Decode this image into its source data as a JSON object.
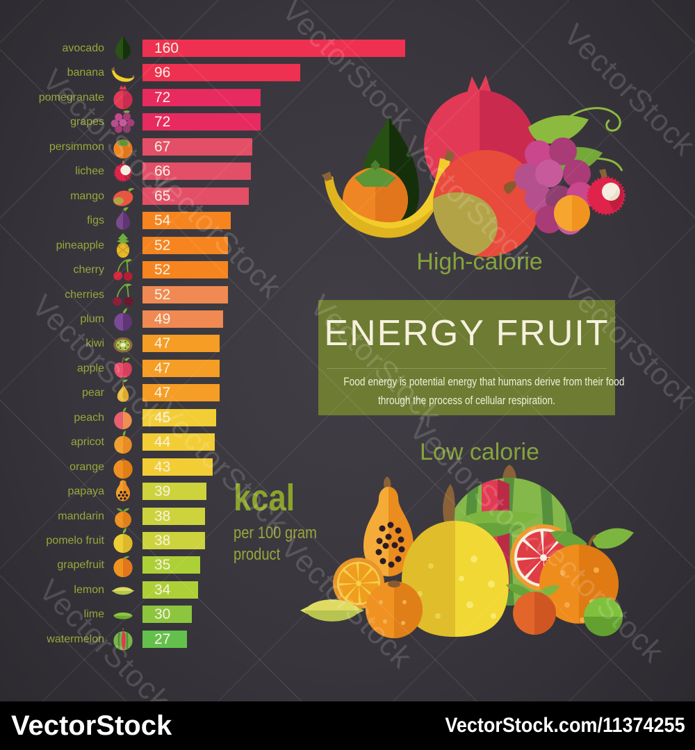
{
  "watermark": {
    "label": "VectorStock"
  },
  "footer": {
    "brand": "VectorStock",
    "url": "VectorStock.com/11374255"
  },
  "title_box": {
    "title": "ENERGY FRUIT",
    "description_line1": "Food energy is potential energy that humans derive from their food",
    "description_line2": "through the process of cellular respiration."
  },
  "captions": {
    "high": "High-calorie",
    "low": "Low calorie"
  },
  "unit_note": {
    "unit": "kcal",
    "line1": "per 100 gram",
    "line2": "product"
  },
  "chart_data": {
    "type": "bar",
    "orientation": "horizontal",
    "title": "Energy fruit",
    "xlabel": "kcal per 100 gram product",
    "xlim": [
      0,
      170
    ],
    "value_labels_inside_bars": true,
    "categories": [
      "avocado",
      "banana",
      "pomegranate",
      "grapes",
      "persimmon",
      "lichee",
      "mango",
      "figs",
      "pineapple",
      "cherry",
      "cherries",
      "plum",
      "kiwi",
      "apple",
      "pear",
      "peach",
      "apricot",
      "orange",
      "papaya",
      "mandarin",
      "pomelo fruit",
      "grapefruit",
      "lemon",
      "lime",
      "watermelon"
    ],
    "values": [
      160,
      96,
      72,
      72,
      67,
      66,
      65,
      54,
      52,
      52,
      52,
      49,
      47,
      47,
      47,
      45,
      44,
      43,
      39,
      38,
      38,
      35,
      34,
      30,
      27
    ],
    "bar_colors": [
      "#ee3150",
      "#ee3150",
      "#e72a60",
      "#e72a60",
      "#e24f66",
      "#e24f66",
      "#e24f66",
      "#f6851f",
      "#f6851f",
      "#f6851f",
      "#f08a52",
      "#f08a52",
      "#f59d24",
      "#f59d24",
      "#f59d24",
      "#f2cd35",
      "#f2cd35",
      "#f2cd35",
      "#ccd33d",
      "#ccd33d",
      "#ccd33d",
      "#aed037",
      "#aed037",
      "#8cc63f",
      "#64c04c"
    ],
    "icons": [
      "avocado",
      "banana",
      "pomegranate",
      "grapes",
      "persimmon",
      "lichee",
      "mango",
      "figs",
      "pineapple",
      "cherry",
      "cherries",
      "plum",
      "kiwi",
      "apple",
      "pear",
      "peach",
      "apricot",
      "orange",
      "papaya",
      "mandarin",
      "pomelo",
      "grapefruit",
      "lemon",
      "lime",
      "watermelon"
    ],
    "label_color": "#9aa63b",
    "value_color": "#f7f2e4"
  }
}
